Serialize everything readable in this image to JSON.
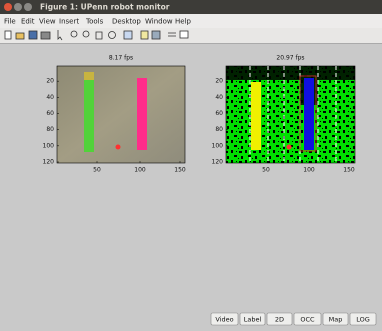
{
  "window": {
    "title": "Figure 1: UPenn robot monitor"
  },
  "menu": [
    "File",
    "Edit",
    "View",
    "Insert",
    "Tools",
    "Desktop",
    "Window",
    "Help"
  ],
  "axes": [
    {
      "title": "8.17 fps",
      "yticks": [
        20,
        40,
        60,
        80,
        100,
        120
      ],
      "xticks": [
        50,
        100,
        150
      ]
    },
    {
      "title": "20.97 fps",
      "yticks": [
        20,
        40,
        60,
        80,
        100,
        120
      ],
      "xticks": [
        50,
        100,
        150
      ]
    }
  ],
  "buttons": [
    "Video",
    "Label",
    "2D",
    "OCC",
    "Map",
    "LOG"
  ]
}
